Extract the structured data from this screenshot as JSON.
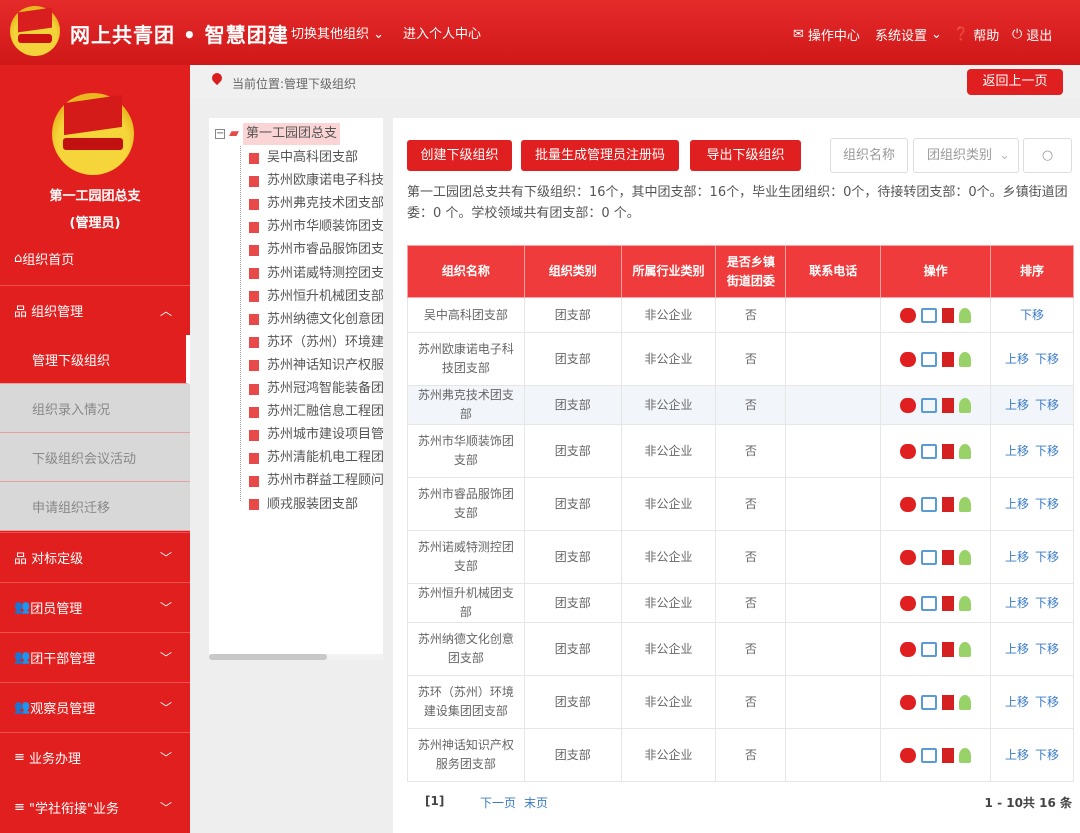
{
  "header": {
    "title": "网上共青团 • 智慧团建",
    "switch_org": "切换其他组织",
    "personal_center": "进入个人中心",
    "ops_center": "操作中心",
    "settings": "系统设置",
    "help": "帮助",
    "logout": "退出"
  },
  "sidebar": {
    "org_name": "第一工园团总支",
    "role": "(管理员)",
    "home": "组织首页",
    "org_mgmt": "组织管理",
    "sub_items": [
      "管理下级组织",
      "组织录入情况",
      "下级组织会议活动",
      "申请组织迁移"
    ],
    "items": [
      "对标定级",
      "团员管理",
      "团干部管理",
      "观察员管理",
      "业务办理",
      "\"学社衔接\"业务"
    ]
  },
  "breadcrumb": {
    "text": "当前位置:管理下级组织",
    "back": "返回上一页"
  },
  "tree": {
    "root": "第一工园团总支",
    "children": [
      "吴中高科团支部",
      "苏州欧康诺电子科技团支部",
      "苏州弗克技术团支部",
      "苏州市华顺装饰团支部",
      "苏州市睿品服饰团支部",
      "苏州诺威特测控团支部",
      "苏州恒升机械团支部",
      "苏州纳德文化创意团支部",
      "苏环（苏州）环境建设集团团支部",
      "苏州神话知识产权服务团支部",
      "苏州冠鸿智能装备团支部",
      "苏州汇融信息工程团支部",
      "苏州城市建设项目管理团支部",
      "苏州清能机电工程团支部",
      "苏州市群益工程顾问团支部",
      "顺戎服装团支部"
    ]
  },
  "toolbar": {
    "create": "创建下级组织",
    "batch_codes": "批量生成管理员注册码",
    "export": "导出下级组织",
    "name_placeholder": "组织名称",
    "type_select": "团组织类别"
  },
  "summary": "第一工园团总支共有下级组织：16个，其中团支部：16个，毕业生团组织：0个，待接转团支部：0个。乡镇街道团委：0 个。学校领域共有团支部：0 个。",
  "table": {
    "headers": [
      "组织名称",
      "组织类别",
      "所属行业类别",
      "是否乡镇街道团委",
      "联系电话",
      "操作",
      "排序"
    ],
    "move_up": "上移",
    "move_down": "下移",
    "rows": [
      {
        "name": "吴中高科团支部",
        "type": "团支部",
        "industry": "非公企业",
        "town": "否",
        "phone": "",
        "up": false
      },
      {
        "name": "苏州欧康诺电子科技团支部",
        "type": "团支部",
        "industry": "非公企业",
        "town": "否",
        "phone": "",
        "up": true
      },
      {
        "name": "苏州弗克技术团支部",
        "type": "团支部",
        "industry": "非公企业",
        "town": "否",
        "phone": "",
        "up": true
      },
      {
        "name": "苏州市华顺装饰团支部",
        "type": "团支部",
        "industry": "非公企业",
        "town": "否",
        "phone": "",
        "up": true
      },
      {
        "name": "苏州市睿品服饰团支部",
        "type": "团支部",
        "industry": "非公企业",
        "town": "否",
        "phone": "",
        "up": true
      },
      {
        "name": "苏州诺威特测控团支部",
        "type": "团支部",
        "industry": "非公企业",
        "town": "否",
        "phone": "",
        "up": true
      },
      {
        "name": "苏州恒升机械团支部",
        "type": "团支部",
        "industry": "非公企业",
        "town": "否",
        "phone": "",
        "up": true
      },
      {
        "name": "苏州纳德文化创意团支部",
        "type": "团支部",
        "industry": "非公企业",
        "town": "否",
        "phone": "",
        "up": true
      },
      {
        "name": "苏环（苏州）环境建设集团团支部",
        "type": "团支部",
        "industry": "非公企业",
        "town": "否",
        "phone": "",
        "up": true
      },
      {
        "name": "苏州神话知识产权服务团支部",
        "type": "团支部",
        "industry": "非公企业",
        "town": "否",
        "phone": "",
        "up": true
      }
    ]
  },
  "pager": {
    "current": "[1]",
    "next": "下一页",
    "last": "末页",
    "range": "1 - 10共 16 条"
  },
  "colors": {
    "primary": "#e02020",
    "link": "#3a7bc8"
  }
}
